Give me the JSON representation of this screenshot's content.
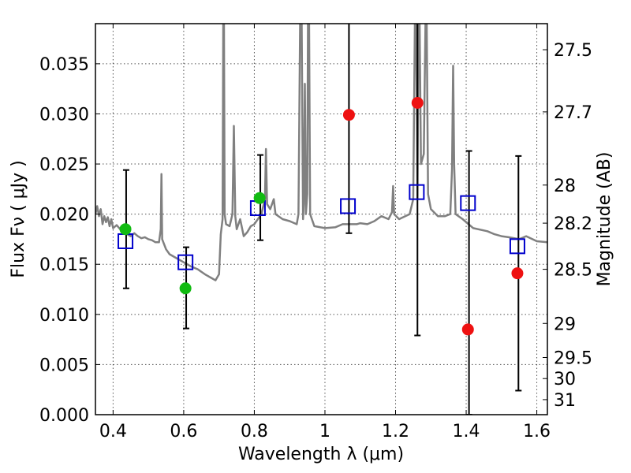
{
  "chart_data": {
    "type": "scatter",
    "xlabel": "Wavelength  λ (μm)",
    "ylabel": "Flux  Fν  ( μJy )",
    "y2label": "Magnitude (AB)",
    "xlim": [
      0.35,
      1.63
    ],
    "ylim": [
      0.0,
      0.039
    ],
    "grid": true,
    "x_ticks": [
      0.4,
      0.6,
      0.8,
      1.0,
      1.2,
      1.4,
      1.6
    ],
    "x_tick_labels": [
      "0.4",
      "0.6",
      "0.8",
      "1",
      "1.2",
      "1.4",
      "1.6"
    ],
    "y_ticks": [
      0.0,
      0.005,
      0.01,
      0.015,
      0.02,
      0.025,
      0.03,
      0.035
    ],
    "y_tick_labels": [
      "0.000",
      "0.005",
      "0.010",
      "0.015",
      "0.020",
      "0.025",
      "0.030",
      "0.035"
    ],
    "y2_ticks": [
      {
        "label": "27.5",
        "flux": 0.0364
      },
      {
        "label": "27.7",
        "flux": 0.0302
      },
      {
        "label": "28",
        "flux": 0.0229
      },
      {
        "label": "28.2",
        "flux": 0.0191
      },
      {
        "label": "28.5",
        "flux": 0.0145
      },
      {
        "label": "29",
        "flux": 0.0091
      },
      {
        "label": "29.5",
        "flux": 0.0057
      },
      {
        "label": "30",
        "flux": 0.0036
      },
      {
        "label": "31",
        "flux": 0.0015
      }
    ],
    "colors": {
      "template": "#808080",
      "model": "#0000cc",
      "green": "#11bb11",
      "red": "#ee1111",
      "errorbar": "#000000"
    },
    "model_points": {
      "x": [
        0.435,
        0.605,
        0.81,
        1.065,
        1.26,
        1.405,
        1.545
      ],
      "y": [
        0.0173,
        0.0152,
        0.0206,
        0.0208,
        0.0222,
        0.0211,
        0.0168
      ]
    },
    "detections": {
      "x": [
        0.435,
        0.605,
        0.815
      ],
      "y": [
        0.0185,
        0.0126,
        0.0216
      ]
    },
    "upper_limits": {
      "x": [
        1.068,
        1.262,
        1.405,
        1.545
      ],
      "y": [
        0.0299,
        0.0311,
        0.0085,
        0.0141
      ]
    },
    "error_bars": [
      {
        "x": 0.437,
        "low": 0.0126,
        "high": 0.0244
      },
      {
        "x": 0.607,
        "low": 0.0086,
        "high": 0.0167
      },
      {
        "x": 0.817,
        "low": 0.0174,
        "high": 0.0259
      },
      {
        "x": 1.068,
        "low": 0.0181,
        "high": 0.04
      },
      {
        "x": 1.262,
        "low": 0.0079,
        "high": 0.04
      },
      {
        "x": 1.408,
        "low": 0.0,
        "high": 0.0263
      },
      {
        "x": 1.548,
        "low": 0.0024,
        "high": 0.0258
      }
    ],
    "template_spectrum": [
      [
        0.35,
        0.02
      ],
      [
        0.355,
        0.0208
      ],
      [
        0.36,
        0.0198
      ],
      [
        0.365,
        0.0205
      ],
      [
        0.37,
        0.019
      ],
      [
        0.375,
        0.0198
      ],
      [
        0.38,
        0.0192
      ],
      [
        0.385,
        0.0197
      ],
      [
        0.39,
        0.0188
      ],
      [
        0.395,
        0.0195
      ],
      [
        0.4,
        0.0186
      ],
      [
        0.41,
        0.0189
      ],
      [
        0.42,
        0.0185
      ],
      [
        0.43,
        0.0183
      ],
      [
        0.44,
        0.018
      ],
      [
        0.45,
        0.0178
      ],
      [
        0.46,
        0.0181
      ],
      [
        0.47,
        0.0178
      ],
      [
        0.48,
        0.0176
      ],
      [
        0.49,
        0.0177
      ],
      [
        0.5,
        0.0175
      ],
      [
        0.51,
        0.0174
      ],
      [
        0.52,
        0.0172
      ],
      [
        0.53,
        0.0172
      ],
      [
        0.535,
        0.0185
      ],
      [
        0.537,
        0.024
      ],
      [
        0.539,
        0.0175
      ],
      [
        0.55,
        0.0165
      ],
      [
        0.56,
        0.016
      ],
      [
        0.58,
        0.0156
      ],
      [
        0.6,
        0.0152
      ],
      [
        0.62,
        0.0148
      ],
      [
        0.64,
        0.0145
      ],
      [
        0.66,
        0.014
      ],
      [
        0.68,
        0.0136
      ],
      [
        0.69,
        0.0134
      ],
      [
        0.7,
        0.014
      ],
      [
        0.705,
        0.018
      ],
      [
        0.71,
        0.0195
      ],
      [
        0.712,
        0.04
      ],
      [
        0.714,
        0.04
      ],
      [
        0.716,
        0.02
      ],
      [
        0.72,
        0.019
      ],
      [
        0.73,
        0.0188
      ],
      [
        0.738,
        0.02
      ],
      [
        0.742,
        0.0288
      ],
      [
        0.746,
        0.0198
      ],
      [
        0.75,
        0.0185
      ],
      [
        0.76,
        0.0195
      ],
      [
        0.77,
        0.0178
      ],
      [
        0.78,
        0.0182
      ],
      [
        0.79,
        0.0188
      ],
      [
        0.8,
        0.019
      ],
      [
        0.81,
        0.0195
      ],
      [
        0.82,
        0.02
      ],
      [
        0.83,
        0.0215
      ],
      [
        0.833,
        0.0265
      ],
      [
        0.836,
        0.021
      ],
      [
        0.845,
        0.0205
      ],
      [
        0.855,
        0.0215
      ],
      [
        0.86,
        0.02
      ],
      [
        0.88,
        0.0195
      ],
      [
        0.9,
        0.0193
      ],
      [
        0.92,
        0.019
      ],
      [
        0.925,
        0.02
      ],
      [
        0.93,
        0.04
      ],
      [
        0.934,
        0.04
      ],
      [
        0.938,
        0.0195
      ],
      [
        0.94,
        0.021
      ],
      [
        0.943,
        0.033
      ],
      [
        0.946,
        0.02
      ],
      [
        0.95,
        0.022
      ],
      [
        0.952,
        0.04
      ],
      [
        0.955,
        0.04
      ],
      [
        0.958,
        0.02
      ],
      [
        0.97,
        0.0188
      ],
      [
        1.0,
        0.0186
      ],
      [
        1.03,
        0.0187
      ],
      [
        1.05,
        0.019
      ],
      [
        1.07,
        0.019
      ],
      [
        1.09,
        0.019
      ],
      [
        1.1,
        0.0191
      ],
      [
        1.12,
        0.019
      ],
      [
        1.14,
        0.0193
      ],
      [
        1.16,
        0.0198
      ],
      [
        1.18,
        0.0195
      ],
      [
        1.19,
        0.0202
      ],
      [
        1.193,
        0.0228
      ],
      [
        1.196,
        0.02
      ],
      [
        1.21,
        0.0195
      ],
      [
        1.24,
        0.02
      ],
      [
        1.25,
        0.0215
      ],
      [
        1.255,
        0.04
      ],
      [
        1.258,
        0.04
      ],
      [
        1.262,
        0.0215
      ],
      [
        1.265,
        0.04
      ],
      [
        1.268,
        0.04
      ],
      [
        1.272,
        0.025
      ],
      [
        1.28,
        0.026
      ],
      [
        1.285,
        0.04
      ],
      [
        1.288,
        0.04
      ],
      [
        1.292,
        0.022
      ],
      [
        1.3,
        0.0205
      ],
      [
        1.32,
        0.0198
      ],
      [
        1.34,
        0.0198
      ],
      [
        1.355,
        0.02
      ],
      [
        1.36,
        0.0245
      ],
      [
        1.363,
        0.0348
      ],
      [
        1.366,
        0.025
      ],
      [
        1.37,
        0.02
      ],
      [
        1.39,
        0.0195
      ],
      [
        1.42,
        0.0186
      ],
      [
        1.46,
        0.0183
      ],
      [
        1.48,
        0.018
      ],
      [
        1.5,
        0.0178
      ],
      [
        1.52,
        0.0177
      ],
      [
        1.55,
        0.0175
      ],
      [
        1.57,
        0.0178
      ],
      [
        1.6,
        0.0173
      ],
      [
        1.63,
        0.0172
      ]
    ]
  }
}
